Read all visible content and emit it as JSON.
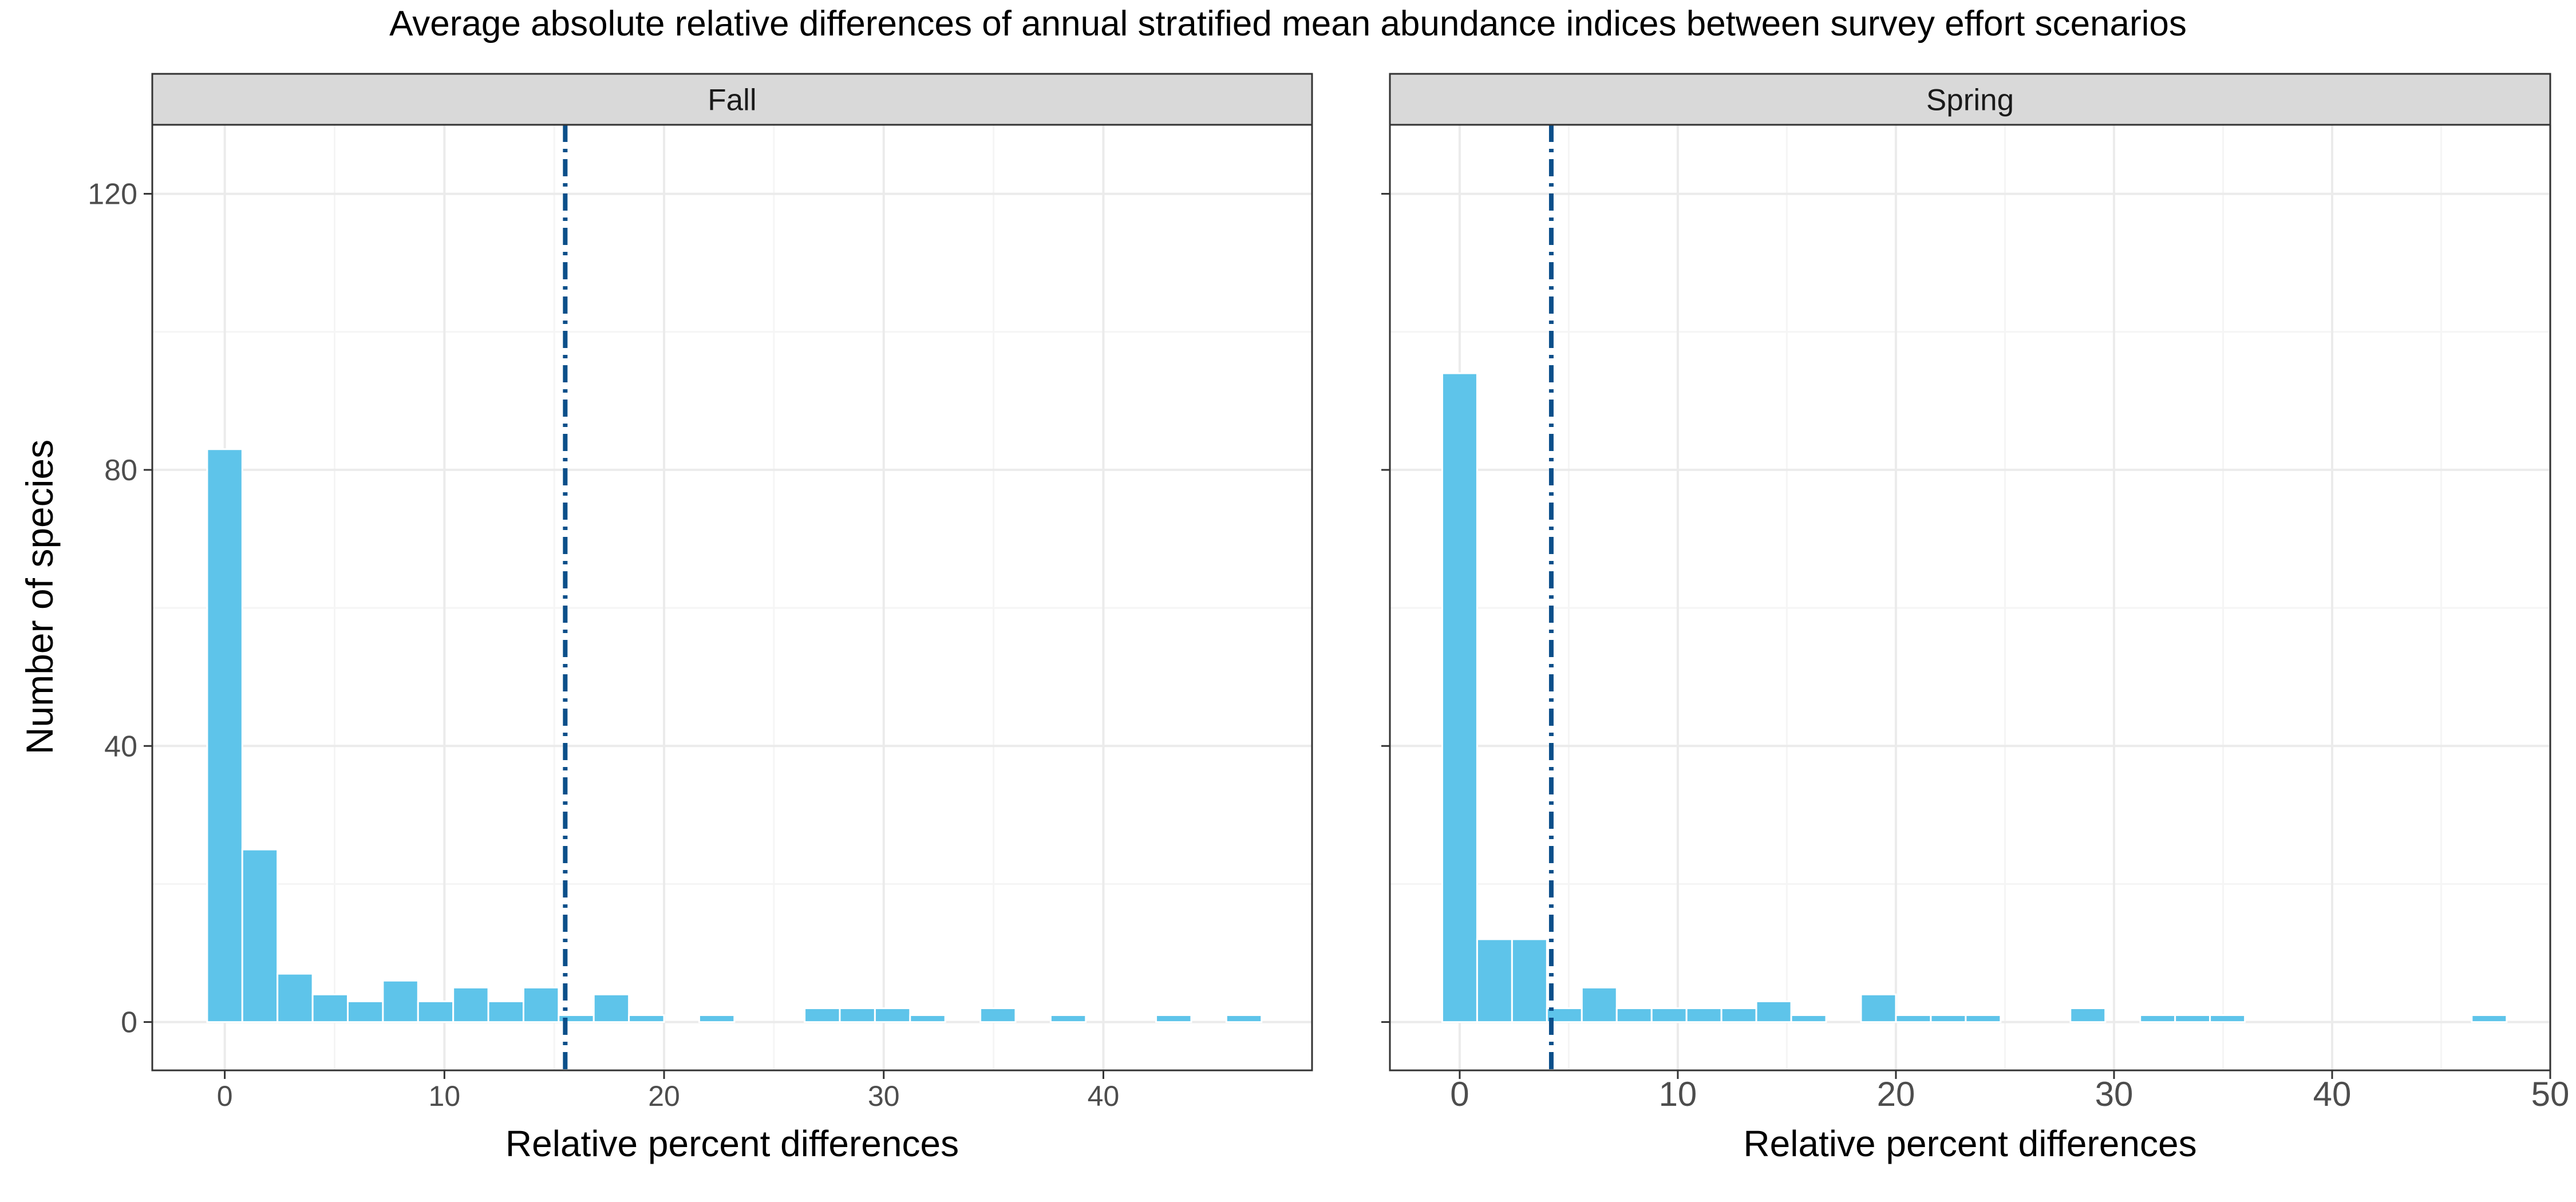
{
  "title": "Average absolute relative differences of annual stratified mean abundance indices between survey effort scenarios",
  "colors": {
    "bar_fill": "#5EC4EA",
    "bar_outline": "#FFFFFF",
    "mean_line": "#0B4F8A",
    "strip_fill": "#D9D9D9",
    "panel_border": "#333333",
    "grid_major": "#EBEBEB",
    "grid_minor": "#F5F5F5"
  },
  "chart_data": {
    "type": "bar",
    "subtype": "histogram",
    "xlabel": "Relative percent differences",
    "ylabel": "Number of species",
    "ylim": [
      -7,
      130
    ],
    "y_ticks": [
      0,
      40,
      80,
      120
    ],
    "y_tick_labels": [
      "0",
      "40",
      "80",
      "120"
    ],
    "bin_width": 1.6,
    "grid": true,
    "facets": [
      {
        "name": "Fall",
        "xlim": [
          -3.3,
          49.5
        ],
        "x_ticks": [
          0,
          10,
          20,
          30,
          40
        ],
        "x_tick_labels": [
          "0",
          "10",
          "20",
          "30",
          "40"
        ],
        "mean_line_x": 15.5,
        "bins": [
          {
            "x": 0.0,
            "count": 83
          },
          {
            "x": 1.6,
            "count": 25
          },
          {
            "x": 3.2,
            "count": 7
          },
          {
            "x": 4.8,
            "count": 4
          },
          {
            "x": 6.4,
            "count": 3
          },
          {
            "x": 8.0,
            "count": 6
          },
          {
            "x": 9.6,
            "count": 3
          },
          {
            "x": 11.2,
            "count": 5
          },
          {
            "x": 12.8,
            "count": 3
          },
          {
            "x": 14.4,
            "count": 5
          },
          {
            "x": 16.0,
            "count": 1
          },
          {
            "x": 17.6,
            "count": 4
          },
          {
            "x": 19.2,
            "count": 1
          },
          {
            "x": 22.4,
            "count": 1
          },
          {
            "x": 27.2,
            "count": 2
          },
          {
            "x": 28.8,
            "count": 2
          },
          {
            "x": 30.4,
            "count": 2
          },
          {
            "x": 32.0,
            "count": 1
          },
          {
            "x": 35.2,
            "count": 2
          },
          {
            "x": 38.4,
            "count": 1
          },
          {
            "x": 43.2,
            "count": 1
          },
          {
            "x": 46.4,
            "count": 1
          }
        ]
      },
      {
        "name": "Spring",
        "xlim": [
          -3.2,
          50.0
        ],
        "x_ticks": [
          0,
          10,
          20,
          30,
          40,
          50
        ],
        "x_tick_labels": [
          "0",
          "10",
          "20",
          "30",
          "40",
          "50"
        ],
        "mean_line_x": 4.2,
        "bins": [
          {
            "x": 0.0,
            "count": 94
          },
          {
            "x": 1.6,
            "count": 12
          },
          {
            "x": 3.2,
            "count": 12
          },
          {
            "x": 4.8,
            "count": 2
          },
          {
            "x": 6.4,
            "count": 5
          },
          {
            "x": 8.0,
            "count": 2
          },
          {
            "x": 9.6,
            "count": 2
          },
          {
            "x": 11.2,
            "count": 2
          },
          {
            "x": 12.8,
            "count": 2
          },
          {
            "x": 14.4,
            "count": 3
          },
          {
            "x": 16.0,
            "count": 1
          },
          {
            "x": 19.2,
            "count": 4
          },
          {
            "x": 20.8,
            "count": 1
          },
          {
            "x": 22.4,
            "count": 1
          },
          {
            "x": 24.0,
            "count": 1
          },
          {
            "x": 28.8,
            "count": 2
          },
          {
            "x": 32.0,
            "count": 1
          },
          {
            "x": 33.6,
            "count": 1
          },
          {
            "x": 35.2,
            "count": 1
          },
          {
            "x": 47.2,
            "count": 1
          }
        ]
      }
    ]
  }
}
